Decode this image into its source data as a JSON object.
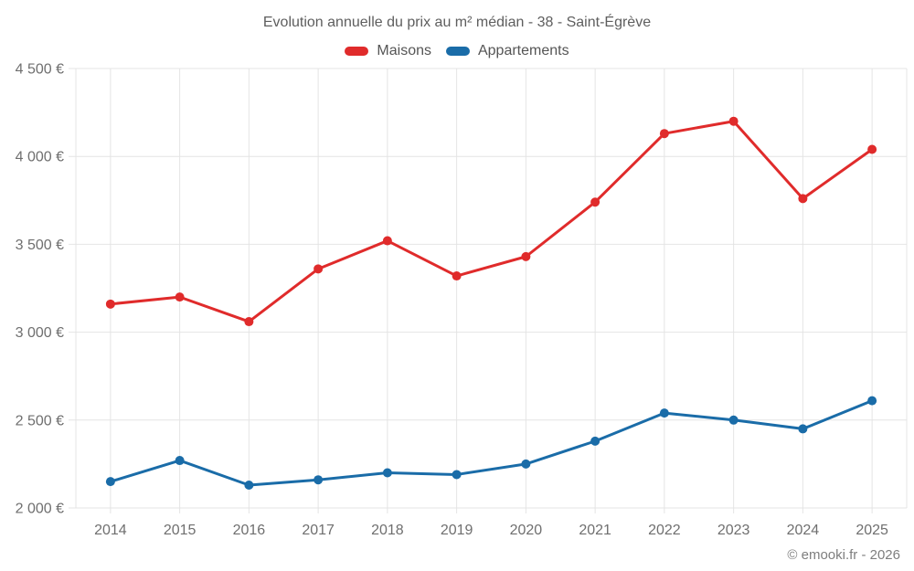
{
  "chart": {
    "title": "Evolution annuelle du prix au m² médian - 38 - Saint-Égrève"
  },
  "legend": {
    "items": [
      {
        "label": "Maisons",
        "color": "#e02b2b"
      },
      {
        "label": "Appartements",
        "color": "#1a6ca8"
      }
    ]
  },
  "footer": {
    "copyright": "© emooki.fr - 2026"
  },
  "chart_data": {
    "type": "line",
    "title": "Evolution annuelle du prix au m² médian - 38 - Saint-Égrève",
    "categories": [
      "2014",
      "2015",
      "2016",
      "2017",
      "2018",
      "2019",
      "2020",
      "2021",
      "2022",
      "2023",
      "2024",
      "2025"
    ],
    "series": [
      {
        "name": "Maisons",
        "color": "#e02b2b",
        "values": [
          3160,
          3200,
          3060,
          3360,
          3520,
          3320,
          3430,
          3740,
          4130,
          4200,
          3760,
          4040
        ]
      },
      {
        "name": "Appartements",
        "color": "#1a6ca8",
        "values": [
          2150,
          2270,
          2130,
          2160,
          2200,
          2190,
          2250,
          2380,
          2540,
          2500,
          2450,
          2610
        ]
      }
    ],
    "ylabel": "",
    "xlabel": "",
    "ylim": [
      2000,
      4500
    ],
    "ytick_values": [
      2000,
      2500,
      3000,
      3500,
      4000,
      4500
    ],
    "ytick_labels": [
      "2 000 €",
      "2 500 €",
      "3 000 €",
      "3 500 €",
      "4 000 €",
      "4 500 €"
    ],
    "grid": true,
    "legend_position": "top",
    "colors": {
      "gridline": "#e4e4e4",
      "tick_label": "#6f6f6f"
    }
  }
}
